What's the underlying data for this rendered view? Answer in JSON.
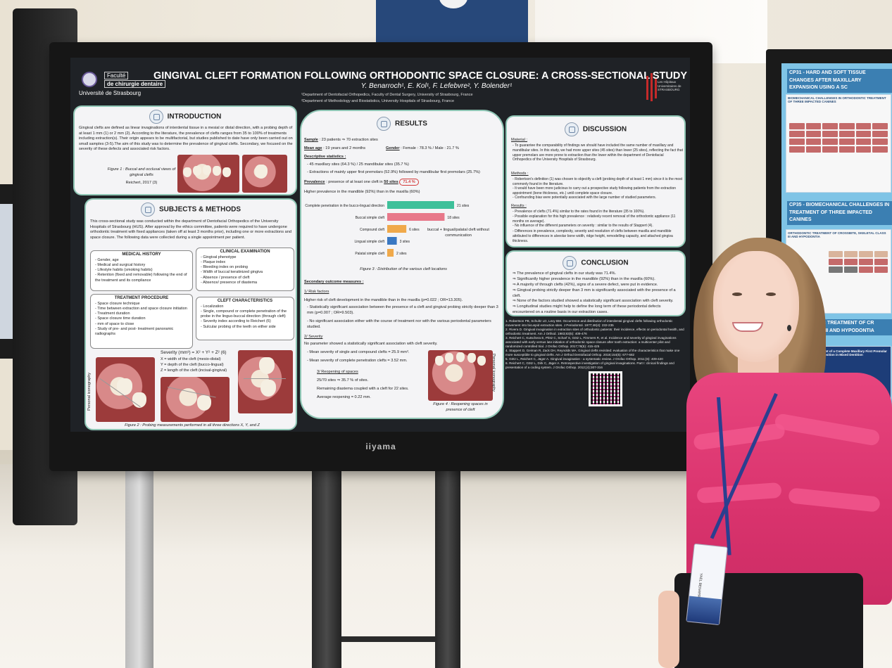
{
  "poster": {
    "logo": {
      "line1": "Faculté",
      "line2": "de chirurgie dentaire",
      "line3": "Université de Strasbourg"
    },
    "title": "GINGIVAL CLEFT FORMATION FOLLOWING ORTHODONTIC SPACE CLOSURE:  A CROSS-SECTIONAL STUDY",
    "authors": "Y. Benarroch¹, E. Kol¹, F. Lefebvre², Y. Bolender¹",
    "affiliation1": "¹Department of Dentofacial Orthopedics, Faculty of Dental Surgery, University of Strasbourg, France",
    "affiliation2": "²Department of Methodology and Biostatistics, University Hospitals of Strasbourg, France",
    "mark_text": "Les Hôpitaux Universitaires de STRASBOURG",
    "introduction": {
      "title": "INTRODUCTION",
      "text": "Gingival clefts are defined as linear invaginations of interdental tissue in a mesial or distal direction, with a probing depth of at least 1 mm (1) or 2 mm (2). According to the literature, the prevalence of clefts ranges from 35 to 100% of treatments including extraction(s). Their origin appears to be multifactorial, but studies published to date have only been carried out on small samples (3-5).The aim of this study was to determine the prevalence of gingival clefts. Secondary, we focused on the severity of these defects and associated risk factors.",
      "figure_caption": "Figure 1 : Buccal and occlusal views of gingival clefts",
      "figure_source": "Reichert, 2017 (3)"
    },
    "methods": {
      "title": "SUBJECTS & METHODS",
      "text": "This cross-sectional study was conducted within the department of Dentofacial Orthopedics of the University Hospitals of Strasbourg (HUS). After approval by the ethics committee, patients were required to have undergone orthodontic treatment with fixed appliances (taken off at least 3 months prior), including one or more extractions and space closure. The following data were collected during a single appointment per patient.",
      "medical_history": {
        "title": "MEDICAL HISTORY",
        "items": [
          "Gender, age",
          "Medical and surgical history",
          "Lifestyle habits (smoking habits)",
          "Retention (fixed and removable) following the end of the treatment and its compliance"
        ]
      },
      "clinical_examination": {
        "title": "CLINICAL EXAMINATION",
        "items": [
          "Gingival phenotype",
          "Plaque index",
          "Bleeding index on probing",
          "Width of buccal keratinized gingiva",
          "Absence / presence of cleft",
          "Absence/ presence of diastema"
        ]
      },
      "treatment_procedure": {
        "title": "TREATMENT PROCEDURE",
        "items": [
          "Space closure technique",
          "Time between extraction and space closure initiation",
          "Treatment duration",
          "Space closure time duration",
          "mm of space to close",
          "Study of pre- and post- treatment panoramic radiographs"
        ]
      },
      "cleft_characteristics": {
        "title": "CLEFT CHARACTERISTICS",
        "items": [
          "Localization",
          "Single, compound or complete penetration of the probe in the linguo-buccal direction (through cleft)",
          "Severity index according to Reichert (6)",
          "Sulcular probing of the teeth on either side"
        ]
      },
      "severity_formula": "Severity (mm³) = X² + Y² + Z² (6)",
      "severity_x": "X = width of the cleft (mesio-distal)",
      "severity_y": "Y = depth of the cleft (bucco-lingual)",
      "severity_z": "Z = length of the cleft (incisal-gingival)",
      "side_label": "Personal iconography",
      "figure_caption": "Figure 2 : Probing measurements performed in all three directions X, Y, and Z"
    },
    "results": {
      "title": "RESULTS",
      "sample_label": "Sample",
      "sample_text": ": 23 patients ⇒ 70 extraction sites",
      "mean_age_label": "Mean age",
      "mean_age_text": ": 19 years and 2 months",
      "gender_label": "Gender",
      "gender_text": ": Female : 78.3 % / Male : 21.7 %",
      "descriptive_label": "Descriptive statistics :",
      "descriptive_1": "45 maxillary sites (64.3 %) / 25 mandibular sites (35.7 %)",
      "descriptive_2": "Extractions of mainly upper first premolars (52.9%) followed by mandibular first premolars (25.7%)",
      "prevalence_label": "Prevalence",
      "prevalence_text": ": presence of at least one cleft in",
      "prevalence_sites": "50 sites",
      "prevalence_value": "71.4 %",
      "higher_prevalence": "Higher prevalence in the mandible (92%) than in the maxilla (60%)",
      "compound_note": "buccal + lingual/palatal cleft without communication",
      "figure3_caption": "Figure 3 : Distribution of the various cleft locations",
      "secondary_title": "Secondary outcome measures :",
      "risk_title": "1/ Risk factors",
      "risk_1": "Higher risk of cleft development in the mandible than in the maxilla (p=0.022 ; OR=13.305).",
      "risk_2": "Statistically significant association between the presence of a cleft and gingival probing strictly deeper than 3 mm (p=0.007 ; OR=9.503).",
      "risk_3": "No significant association either with the course of treatment nor with the various periodontal parameters studied.",
      "severity_title": "2/ Severity",
      "severity_1": "No parameter showed a statistically significant association with cleft severity.",
      "severity_2": "Mean severity of single and compound clefts = 25.9 mm³.",
      "severity_3": "Mean severity of complete penetration clefts = 3.52 mm.",
      "reopening_title": "3/ Reopening of spaces",
      "reopening_1": "25/70 sites ⇒ 35.7 % of sites.",
      "reopening_2": "Remaining diastema coupled with a cleft for 22 sites.",
      "reopening_3": "Average reopening = 0.22 mm.",
      "figure4_caption": "Figure 4 : Reopening spaces in presence of cleft",
      "figure4_side": "Personal iconography"
    },
    "discussion": {
      "title": "DISCUSSION",
      "material_title": "Material :",
      "material_1": "To guarantee the comparability of findings we should have included the same number of maxillary and mandibular sites. In this study, we had more upper sites (45 sites) than lower (25 sites), reflecting the fact that upper premolars are more prone to extraction than the lower within the department of Dentofacial Orthopedics of the University Hospitals of Strasbourg.",
      "methods_title": "Methods :",
      "methods_1": "Robertson's definition (1) was chosen to objectify a cleft (probing depth of at least 1 mm) since it is the most commonly found in the literature.",
      "methods_2": "It would have been more judicious to carry out a prospective study following patients from the extraction appointment (bone thickness, etc.) until complete space closure.",
      "methods_3": "Confounding bias were potentially associated with the large number of studied parameters.",
      "results_title": "Results :",
      "results_1": "Prevalence of clefts (71.4%) similar to the rates found in the literature (35 to 100%).",
      "results_2": "Possible explanation for this high prevalence : relatively recent removal of the orthodontic appliance (11 months on average).",
      "results_3": "No influence of the different parameters on severity : similar to the results of Stappert (4).",
      "results_4": "Differences in prevalence, complexity, severity and resolution of clefts between maxilla and mandible attributed to differences in alveolar bone width, ridge height, remodelling capacity, and attached gingiva thickness."
    },
    "conclusion": {
      "title": "CONCLUSION",
      "items": [
        "⇒ The prevalence of gingival clefts in our study was 71.4%.",
        "⇒ Significantly higher prevalence in the mandible (92%) than in the maxilla (60%).",
        "⇒ A majority of through clefts (42%), signs of a severe defect, were put in evidence.",
        "⇒ Gingival probing strictly deeper than 3 mm is significantly associated with the presence of a cleft.",
        "⇒ None of the factors studied showed a statistically significant association with cleft severity.",
        "⇒ Longitudinal studies might help to define the long term of these periodontal defects encountered on a routine basis in our extraction cases."
      ]
    },
    "references": [
      "1. Robertson PB, Schultz LD, Levy BM. Occurrence and distribution of interdental gingival clefts following orthodontic movement into bicuspid extraction sites. J Periodontol. 1977;48(4): 232-235",
      "2. Rivera D. Gingival invagination in extraction sites of orthodontic patients: their incidence, effects on periodontal health, and orthodontic treatment. Am J Orthod. 1983;83(5): 409-476",
      "3. Reichert C, Kutschera E, Plötz C, Scharf S, Götz L, Fimmers R, et al. Incidence and severity of gingival invaginations associated with early versus late initiation of orthodontic space closure after tooth extraction: a multicenter pilot and randomized controlled trial. J Orofac Orthop. 2017;78(5): 415-425",
      "4. Stappert D, Geiman R, Zack DH, Reynolds MA. Gingival clefts revisited: evaluation of the characteristics that make one more susceptible to gingival clefts. Am J Orthod Dentofacial Orthop. 2018;154(5): 677-682",
      "5. Götz L, Reichert C, Jäger A. Gingival invagination - a systematic review. J Orofac Orthop. 2011;(6): 409-420",
      "6. Reichert C, Götz L, Dirk C, Jäger A. Retrospective investigation of gingival invaginations. Part I: clinical findings and presentation of a coding system. J Orofac Orthop. 2012;(4):307-316"
    ]
  },
  "chart_data": {
    "type": "bar",
    "orientation": "horizontal",
    "categories": [
      "Complete penetration in the bucco-lingual direction",
      "Buccal simple cleft",
      "Compound cleft",
      "Lingual simple cleft",
      "Palatal simple cleft"
    ],
    "values": [
      21,
      18,
      6,
      3,
      2
    ],
    "value_labels": [
      "21 sites",
      "18 sites",
      "6 sites",
      "3 sites",
      "2 sites"
    ],
    "colors": [
      "#3ec09a",
      "#e8788a",
      "#f0a94a",
      "#3a78c2",
      "#f0a94a"
    ],
    "title": "Figure 3 : Distribution of the various cleft locations",
    "xlim": [
      0,
      21
    ]
  },
  "monitor": {
    "brand": "iiyama"
  },
  "side_poster": {
    "header1": "CP31 - HARD AND SOFT TISSUE CHANGES AFTER MAXILLARY EXPANSION USING A SC",
    "card1_title": "BIOMECHANICAL CHALLENGES IN ORTHODONTIC TREATMENT OF THREE IMPACTED CANINES",
    "header2": "CP35 - BIOMECHANICAL CHALLENGES IN TREATMENT OF THREE IMPACTED CANINES",
    "card2_title": "ORTHODONTIC TREATMENT OF CROSSBITE, SKELETAL CLASS III AND HYPODONTIA",
    "header3": "ORTHODONTIC TREATMENT OF CR LETAL CLASS III AND HYPODONTIA",
    "card3_title": "Orthodontic Management of a Complete Maxillary First Premolar Transposition in Mixed Dentition"
  },
  "badge": {
    "text": "YAEL BENARROCH"
  },
  "colors": {
    "panel_border": "#8fc6b5",
    "poster_bg": "#1f2226",
    "shirt": "#e03f76",
    "prevalence_circle": "#d43a3a"
  }
}
